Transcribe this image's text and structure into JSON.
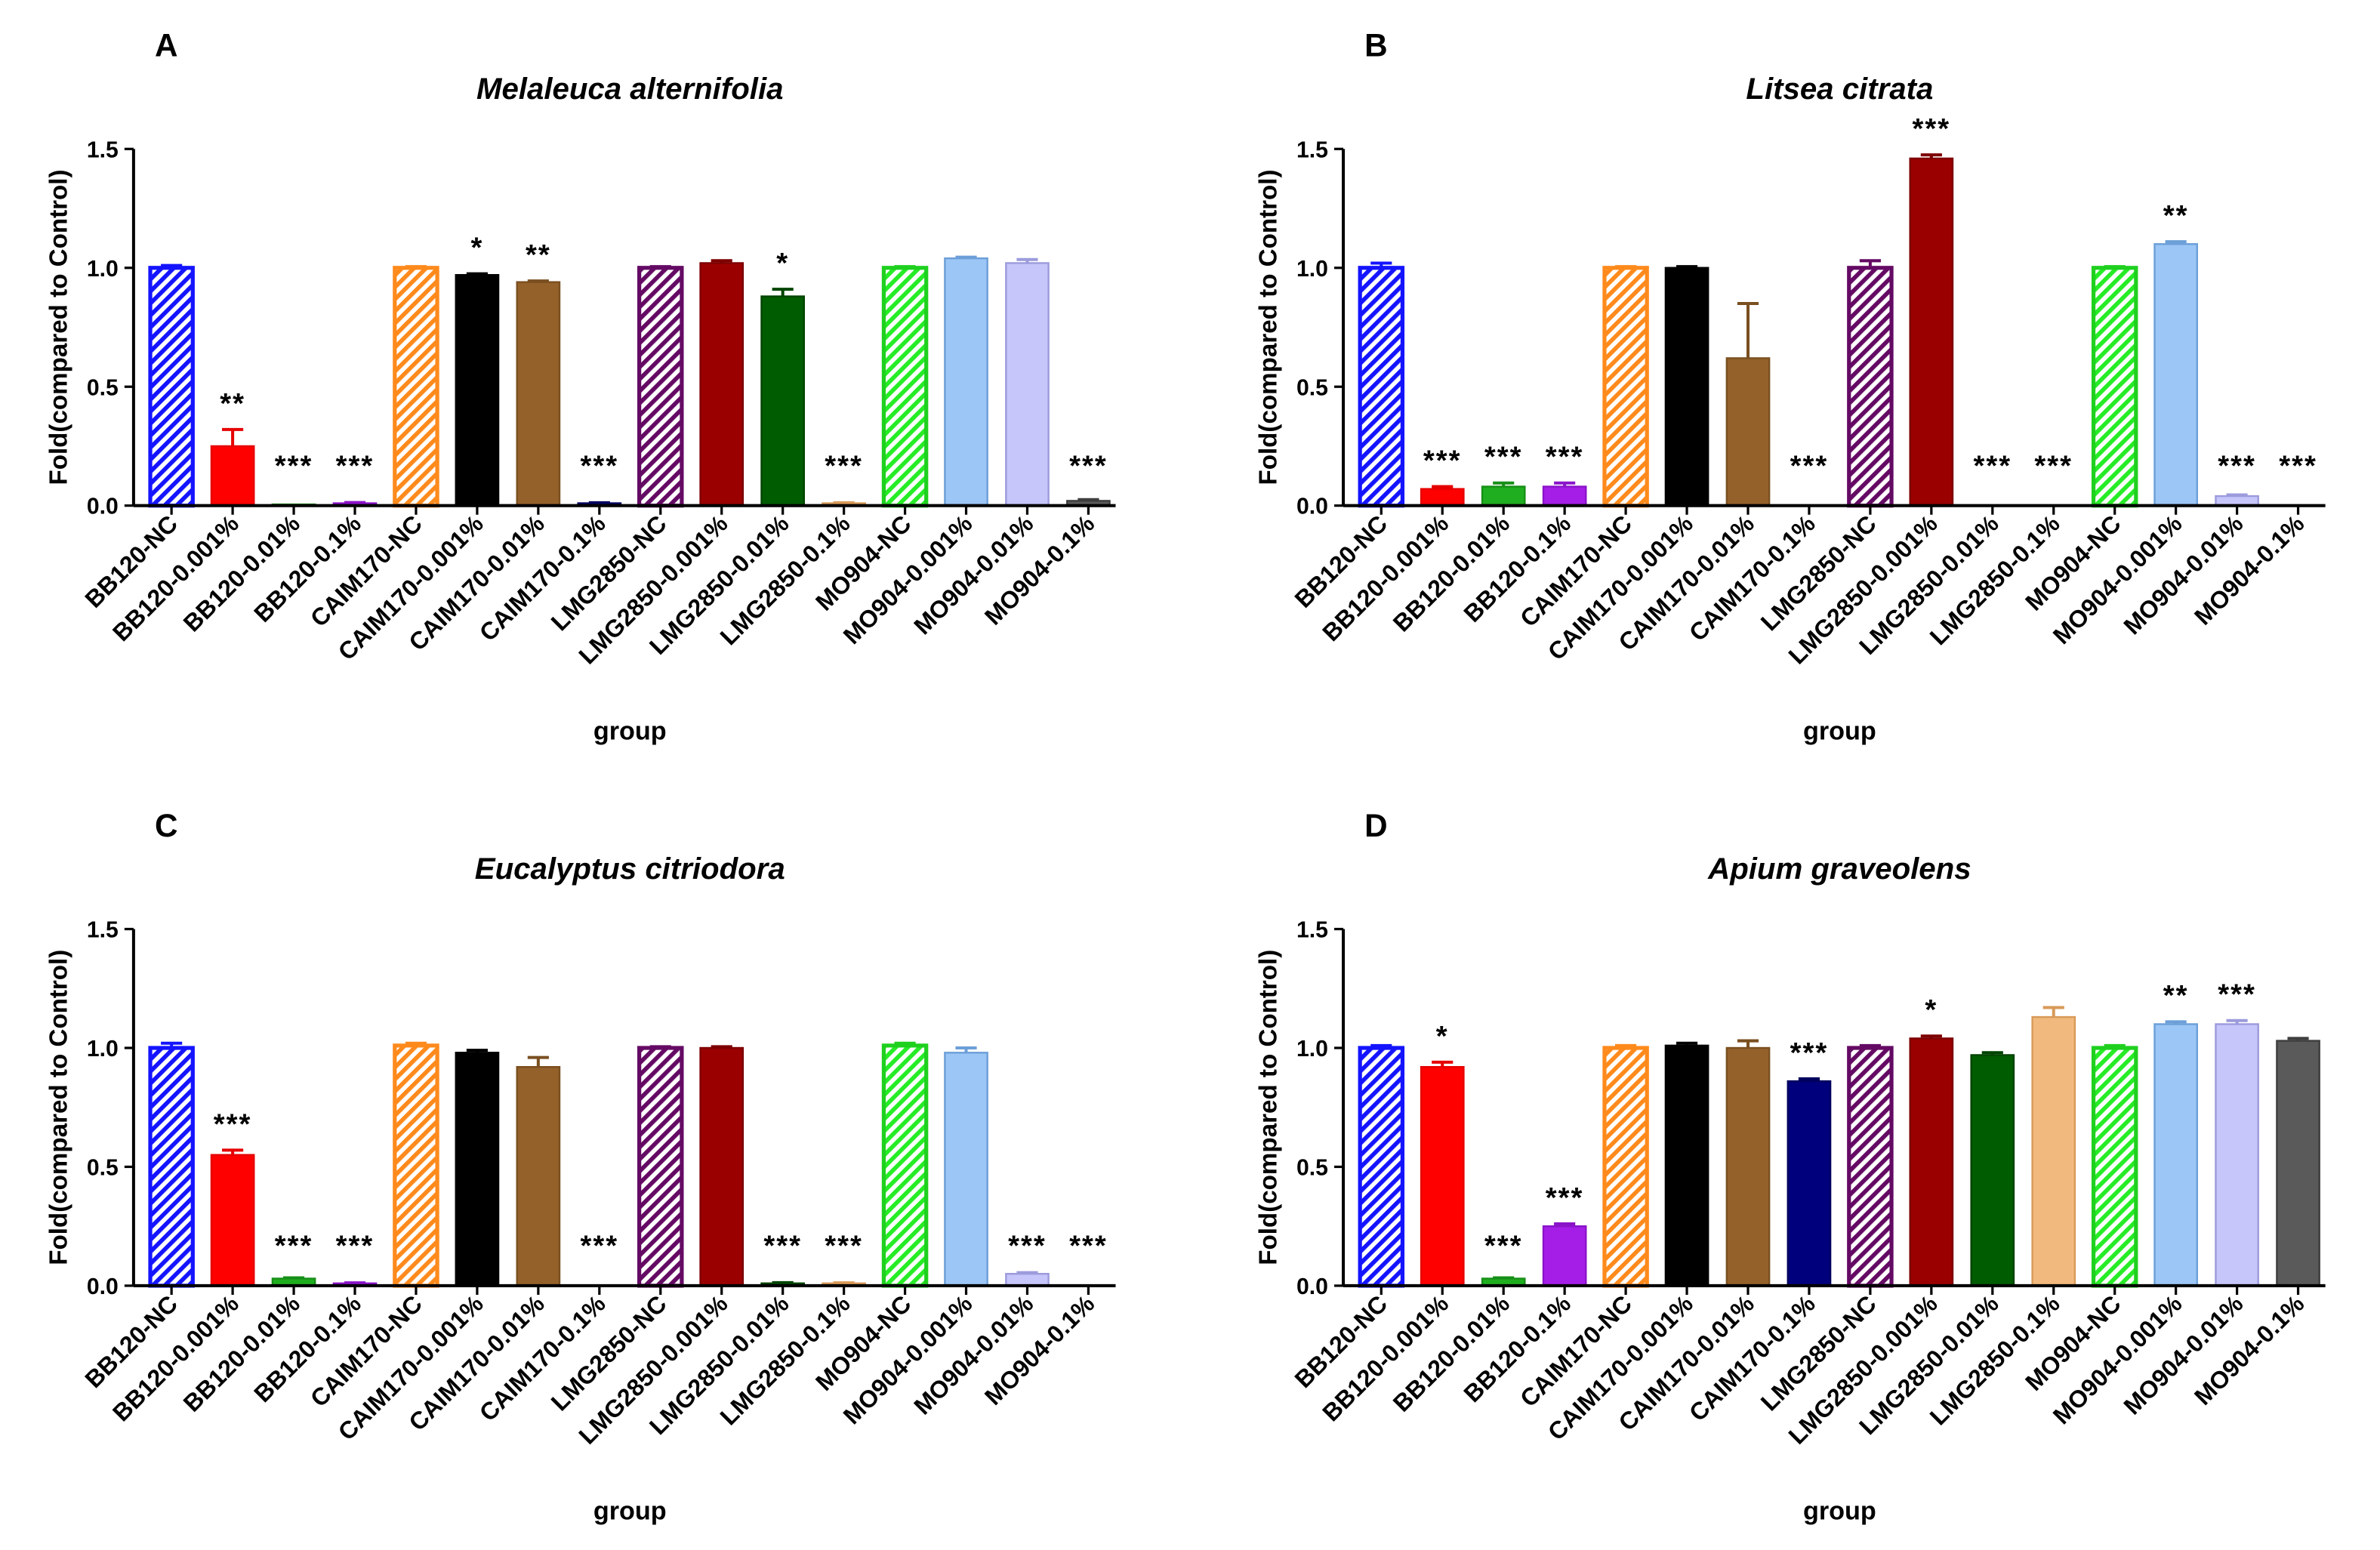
{
  "bar_style": {
    "colors": [
      "#1414ff",
      "#ff0000",
      "#1fae1f",
      "#a51ee8",
      "#ff8a1c",
      "#000000",
      "#94612a",
      "#00007d",
      "#640a64",
      "#9b0000",
      "#005c00",
      "#f2b97e",
      "#26ec26",
      "#9cc6f6",
      "#c7c6fb",
      "#5a5a5a"
    ],
    "strokes": [
      "#1414ff",
      "#e60000",
      "#178f17",
      "#8a14c8",
      "#ff8a1c",
      "#000000",
      "#7a4f20",
      "#00005e",
      "#640a64",
      "#7d0000",
      "#004400",
      "#d89a58",
      "#1fd01f",
      "#6c9fd8",
      "#9c9bdc",
      "#3e3e3e"
    ],
    "hatched": [
      true,
      false,
      false,
      false,
      true,
      false,
      false,
      false,
      true,
      false,
      false,
      false,
      true,
      false,
      false,
      false
    ]
  },
  "chart_data": [
    {
      "type": "bar",
      "panel_label": "A",
      "title": "Melaleuca alternifolia",
      "xlabel": "group",
      "ylabel": "Fold(compared to Control)",
      "ylim": [
        0,
        1.5
      ],
      "yticks": [
        "0.0",
        "0.5",
        "1.0",
        "1.5"
      ],
      "categories": [
        "BB120-NC",
        "BB120-0.001%",
        "BB120-0.01%",
        "BB120-0.1%",
        "CAIM170-NC",
        "CAIM170-0.001%",
        "CAIM170-0.01%",
        "CAIM170-0.1%",
        "LMG2850-NC",
        "LMG2850-0.001%",
        "LMG2850-0.01%",
        "LMG2850-0.1%",
        "MO904-NC",
        "MO904-0.001%",
        "MO904-0.01%",
        "MO904-0.1%"
      ],
      "values": [
        1.0,
        0.25,
        0.005,
        0.01,
        1.0,
        0.97,
        0.94,
        0.01,
        1.0,
        1.02,
        0.88,
        0.01,
        1.0,
        1.04,
        1.02,
        0.02
      ],
      "errors": [
        0.01,
        0.07,
        0,
        0.003,
        0.005,
        0.005,
        0.005,
        0.002,
        0.005,
        0.01,
        0.03,
        0.002,
        0.005,
        0.005,
        0.015,
        0.005
      ],
      "significance": [
        null,
        "**",
        "***",
        "***",
        null,
        "*",
        "**",
        "***",
        null,
        null,
        "*",
        "***",
        null,
        null,
        null,
        "***"
      ]
    },
    {
      "type": "bar",
      "panel_label": "B",
      "title": "Litsea citrata",
      "xlabel": "group",
      "ylabel": "Fold(compared to Control)",
      "ylim": [
        0,
        1.5
      ],
      "yticks": [
        "0.0",
        "0.5",
        "1.0",
        "1.5"
      ],
      "categories": [
        "BB120-NC",
        "BB120-0.001%",
        "BB120-0.01%",
        "BB120-0.1%",
        "CAIM170-NC",
        "CAIM170-0.001%",
        "CAIM170-0.01%",
        "CAIM170-0.1%",
        "LMG2850-NC",
        "LMG2850-0.001%",
        "LMG2850-0.01%",
        "LMG2850-0.1%",
        "MO904-NC",
        "MO904-0.001%",
        "MO904-0.01%",
        "MO904-0.1%"
      ],
      "values": [
        1.0,
        0.07,
        0.08,
        0.08,
        1.0,
        1.0,
        0.62,
        0.0,
        1.0,
        1.46,
        0.0,
        0.0,
        1.0,
        1.1,
        0.04,
        0.0
      ],
      "errors": [
        0.02,
        0.01,
        0.015,
        0.015,
        0.005,
        0.005,
        0.23,
        0,
        0.03,
        0.015,
        0,
        0,
        0.005,
        0.01,
        0.005,
        0
      ],
      "significance": [
        null,
        "***",
        "***",
        "***",
        null,
        null,
        null,
        "***",
        null,
        "***",
        "***",
        "***",
        null,
        "**",
        "***",
        "***"
      ]
    },
    {
      "type": "bar",
      "panel_label": "C",
      "title": "Eucalyptus citriodora",
      "xlabel": "group",
      "ylabel": "Fold(compared to Control)",
      "ylim": [
        0,
        1.5
      ],
      "yticks": [
        "0.0",
        "0.5",
        "1.0",
        "1.5"
      ],
      "categories": [
        "BB120-NC",
        "BB120-0.001%",
        "BB120-0.01%",
        "BB120-0.1%",
        "CAIM170-NC",
        "CAIM170-0.001%",
        "CAIM170-0.01%",
        "CAIM170-0.1%",
        "LMG2850-NC",
        "LMG2850-0.001%",
        "LMG2850-0.01%",
        "LMG2850-0.1%",
        "MO904-NC",
        "MO904-0.001%",
        "MO904-0.01%",
        "MO904-0.1%"
      ],
      "values": [
        1.0,
        0.55,
        0.03,
        0.01,
        1.01,
        0.98,
        0.92,
        0.0,
        1.0,
        1.0,
        0.01,
        0.01,
        1.01,
        0.98,
        0.05,
        0.0
      ],
      "errors": [
        0.02,
        0.02,
        0.003,
        0.002,
        0.01,
        0.01,
        0.04,
        0,
        0.005,
        0.005,
        0.003,
        0.002,
        0.01,
        0.02,
        0.005,
        0
      ],
      "significance": [
        null,
        "***",
        "***",
        "***",
        null,
        null,
        null,
        "***",
        null,
        null,
        "***",
        "***",
        null,
        null,
        "***",
        "***"
      ]
    },
    {
      "type": "bar",
      "panel_label": "D",
      "title": "Apium graveolens",
      "xlabel": "group",
      "ylabel": "Fold(compared to Control)",
      "ylim": [
        0,
        1.5
      ],
      "yticks": [
        "0.0",
        "0.5",
        "1.0",
        "1.5"
      ],
      "categories": [
        "BB120-NC",
        "BB120-0.001%",
        "BB120-0.01%",
        "BB120-0.1%",
        "CAIM170-NC",
        "CAIM170-0.001%",
        "CAIM170-0.01%",
        "CAIM170-0.1%",
        "LMG2850-NC",
        "LMG2850-0.001%",
        "LMG2850-0.01%",
        "LMG2850-0.1%",
        "MO904-NC",
        "MO904-0.001%",
        "MO904-0.01%",
        "MO904-0.1%"
      ],
      "values": [
        1.0,
        0.92,
        0.03,
        0.25,
        1.0,
        1.01,
        1.0,
        0.86,
        1.0,
        1.04,
        0.97,
        1.13,
        1.0,
        1.1,
        1.1,
        1.03
      ],
      "errors": [
        0.01,
        0.02,
        0.003,
        0.01,
        0.01,
        0.01,
        0.03,
        0.01,
        0.01,
        0.01,
        0.01,
        0.04,
        0.01,
        0.01,
        0.015,
        0.01
      ],
      "significance": [
        null,
        "*",
        "***",
        "***",
        null,
        null,
        null,
        "***",
        null,
        "*",
        null,
        null,
        null,
        "**",
        "***",
        null
      ]
    }
  ]
}
